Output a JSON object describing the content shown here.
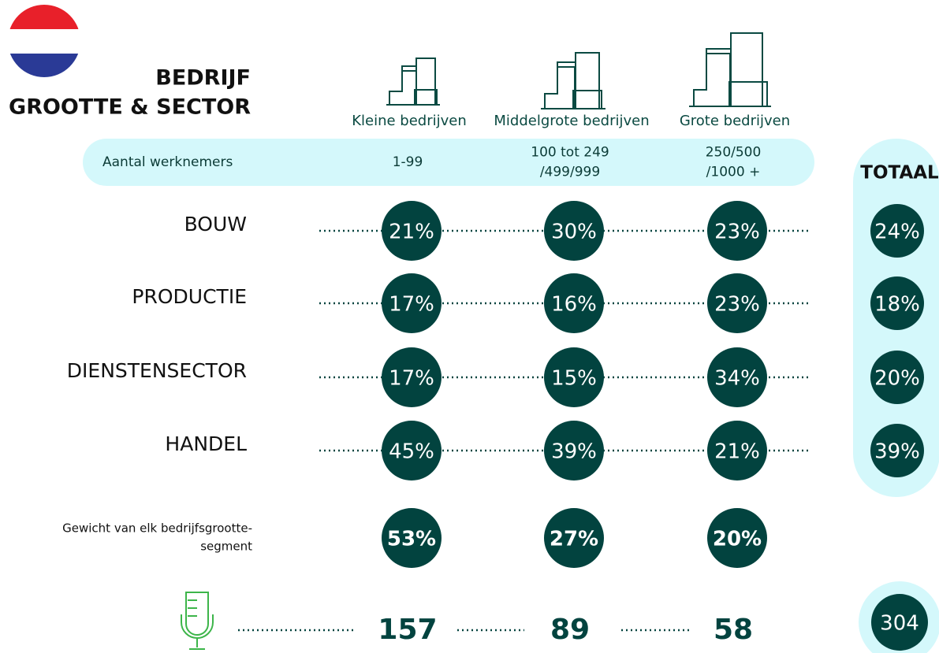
{
  "header": {
    "title_lines": [
      "BEDRIJF",
      "GROOTTE & SECTOR"
    ],
    "total_label": "TOTAAL"
  },
  "columns": [
    {
      "label": "Kleine bedrijven",
      "range_lines": [
        "1-99"
      ]
    },
    {
      "label": "Middelgrote bedrijven",
      "range_lines": [
        "100 tot 249",
        "/499/999"
      ]
    },
    {
      "label": "Grote bedrijven",
      "range_lines": [
        "250/500",
        "/1000 +"
      ]
    }
  ],
  "range_label": "Aantal werknemers",
  "rows": [
    {
      "label": "BOUW",
      "values": [
        "21%",
        "30%",
        "23%"
      ],
      "total": "24%"
    },
    {
      "label": "PRODUCTIE",
      "values": [
        "17%",
        "16%",
        "23%"
      ],
      "total": "18%"
    },
    {
      "label": "DIENSTENSECTOR",
      "values": [
        "17%",
        "15%",
        "34%"
      ],
      "total": "20%"
    },
    {
      "label": "HANDEL",
      "values": [
        "45%",
        "39%",
        "21%"
      ],
      "total": "39%"
    }
  ],
  "weight": {
    "label_lines": [
      "Gewicht van elk bedrijfsgrootte-",
      "segment"
    ],
    "values": [
      "53%",
      "27%",
      "20%"
    ]
  },
  "respondents": {
    "values": [
      "157",
      "89",
      "58"
    ],
    "total": "304"
  }
}
